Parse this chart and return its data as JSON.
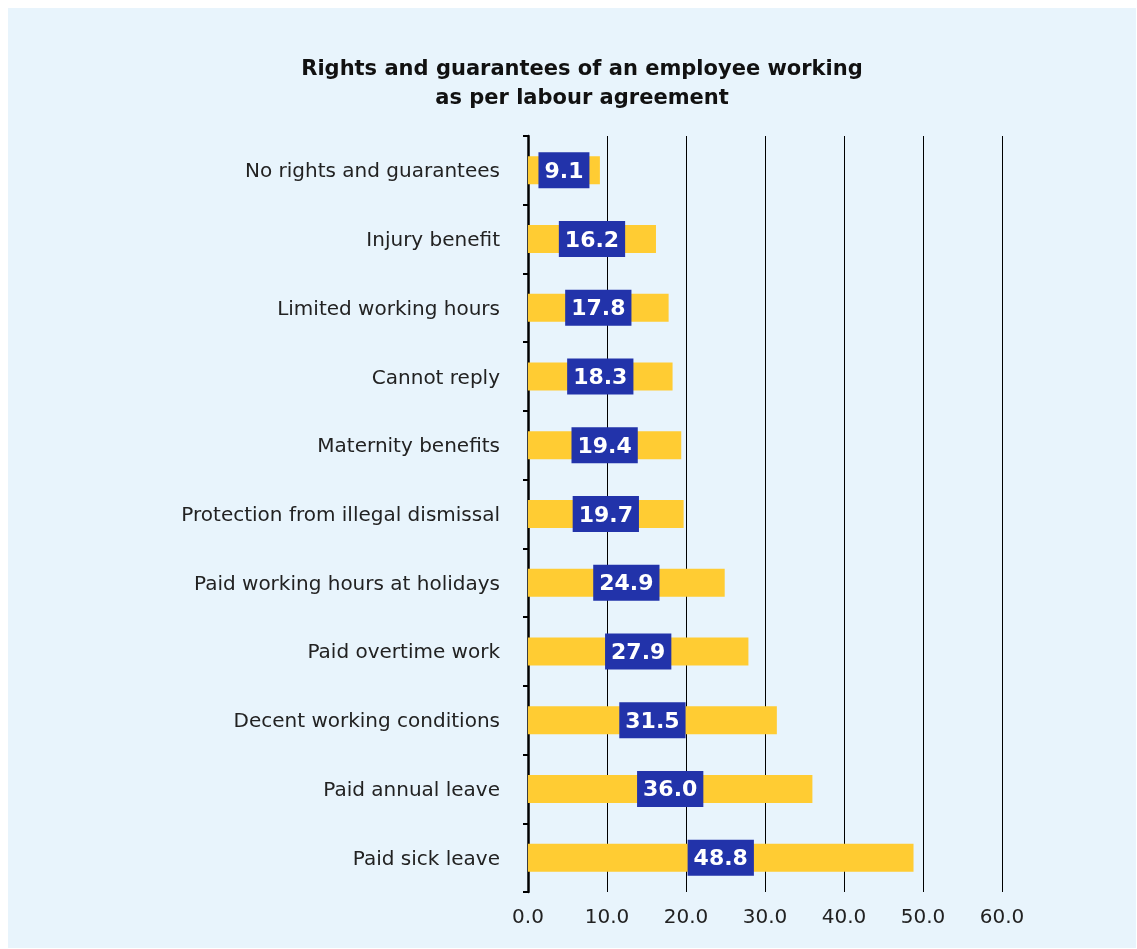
{
  "chart_data": {
    "type": "bar",
    "orientation": "horizontal",
    "title": "Rights and guarantees of an employee working\nas per labour agreement",
    "categories": [
      "No rights and guarantees",
      "Injury benefit",
      "Limited working hours",
      "Cannot reply",
      "Maternity benefits",
      "Protection from illegal dismissal",
      "Paid working hours at holidays",
      "Paid overtime work",
      "Decent working conditions",
      "Paid annual leave",
      "Paid sick leave"
    ],
    "values": [
      9.1,
      16.2,
      17.8,
      18.3,
      19.4,
      19.7,
      24.9,
      27.9,
      31.5,
      36.0,
      48.8
    ],
    "value_labels": [
      "9.1",
      "16.2",
      "17.8",
      "18.3",
      "19.4",
      "19.7",
      "24.9",
      "27.9",
      "31.5",
      "36.0",
      "48.8"
    ],
    "color": "#ffcc33",
    "xlim": [
      0,
      60
    ],
    "xticks": [
      {
        "value": 0,
        "label": "0.0"
      },
      {
        "value": 10,
        "label": "10.0"
      },
      {
        "value": 20,
        "label": "20.0"
      },
      {
        "value": 30,
        "label": "30.0"
      },
      {
        "value": 40,
        "label": "40.0"
      },
      {
        "value": 50,
        "label": "50.0"
      },
      {
        "value": 60,
        "label": "60.0"
      }
    ],
    "grid": "x"
  }
}
